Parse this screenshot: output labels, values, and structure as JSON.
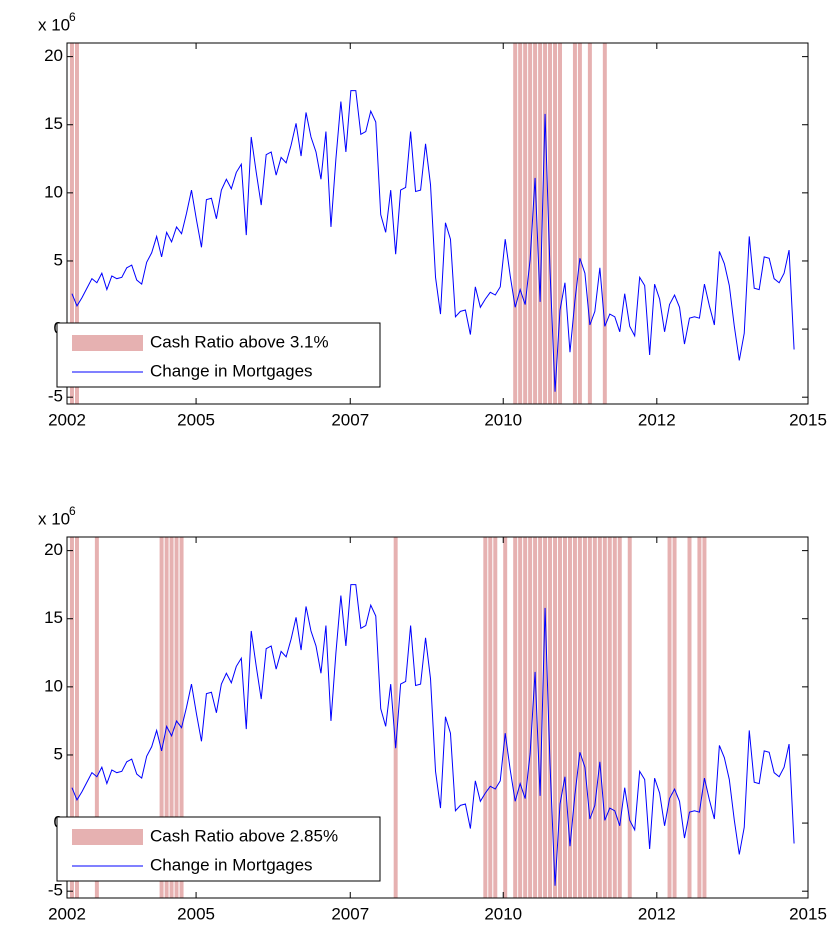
{
  "chart_data": [
    {
      "type": "line",
      "scale_label": {
        "base": "x 10",
        "exponent": "6"
      },
      "xlim": [
        2002.5,
        2014.9
      ],
      "xticks": [
        {
          "value": 2002.5,
          "label": "2002"
        },
        {
          "value": 2004.66,
          "label": "2005"
        },
        {
          "value": 2007.24,
          "label": "2007"
        },
        {
          "value": 2009.8,
          "label": "2010"
        },
        {
          "value": 2012.37,
          "label": "2012"
        },
        {
          "value": 2014.9,
          "label": "2015"
        }
      ],
      "ylim": [
        -5.5,
        21
      ],
      "yticks": [
        -5,
        0,
        5,
        10,
        15,
        20
      ],
      "legend": "lower left",
      "shaded": {
        "name": "Cash Ratio above 3.1%",
        "color": "#e6b1b1",
        "x": [
          2002.583,
          2002.667,
          2010.0,
          2010.083,
          2010.167,
          2010.25,
          2010.333,
          2010.417,
          2010.5,
          2010.583,
          2010.667,
          2010.75,
          2011.0,
          2011.083,
          2011.25,
          2011.5
        ]
      },
      "series": [
        {
          "name": "Change in Mortgages",
          "color": "#0000ff",
          "x": [
            2002.583,
            2002.667,
            2002.75,
            2002.833,
            2002.917,
            2003.0,
            2003.083,
            2003.167,
            2003.25,
            2003.333,
            2003.417,
            2003.5,
            2003.583,
            2003.667,
            2003.75,
            2003.833,
            2003.917,
            2004.0,
            2004.083,
            2004.167,
            2004.25,
            2004.333,
            2004.417,
            2004.5,
            2004.583,
            2004.667,
            2004.75,
            2004.833,
            2004.917,
            2005.0,
            2005.083,
            2005.167,
            2005.25,
            2005.333,
            2005.417,
            2005.5,
            2005.583,
            2005.667,
            2005.75,
            2005.833,
            2005.917,
            2006.0,
            2006.083,
            2006.167,
            2006.25,
            2006.333,
            2006.417,
            2006.5,
            2006.583,
            2006.667,
            2006.75,
            2006.833,
            2006.917,
            2007.0,
            2007.083,
            2007.167,
            2007.25,
            2007.333,
            2007.417,
            2007.5,
            2007.583,
            2007.667,
            2007.75,
            2007.833,
            2007.917,
            2008.0,
            2008.083,
            2008.167,
            2008.25,
            2008.333,
            2008.417,
            2008.5,
            2008.583,
            2008.667,
            2008.75,
            2008.833,
            2008.917,
            2009.0,
            2009.083,
            2009.167,
            2009.25,
            2009.333,
            2009.417,
            2009.5,
            2009.583,
            2009.667,
            2009.75,
            2009.833,
            2009.917,
            2010.0,
            2010.083,
            2010.167,
            2010.25,
            2010.333,
            2010.417,
            2010.5,
            2010.583,
            2010.667,
            2010.75,
            2010.833,
            2010.917,
            2011.0,
            2011.083,
            2011.167,
            2011.25,
            2011.333,
            2011.417,
            2011.5,
            2011.583,
            2011.667,
            2011.75,
            2011.833,
            2011.917,
            2012.0,
            2012.083,
            2012.167,
            2012.25,
            2012.333,
            2012.417,
            2012.5,
            2012.583,
            2012.667,
            2012.75,
            2012.833,
            2012.917,
            2013.0,
            2013.083,
            2013.167,
            2013.25,
            2013.333,
            2013.417,
            2013.5,
            2013.583,
            2013.667,
            2013.75,
            2013.833,
            2013.917,
            2014.0,
            2014.083,
            2014.167,
            2014.25,
            2014.333,
            2014.417,
            2014.5,
            2014.583,
            2014.667
          ],
          "values": [
            2.6,
            1.7,
            2.3,
            3.0,
            3.7,
            3.4,
            4.1,
            2.9,
            3.9,
            3.7,
            3.8,
            4.5,
            4.7,
            3.6,
            3.3,
            4.9,
            5.6,
            6.8,
            5.3,
            7.1,
            6.4,
            7.5,
            7.0,
            8.5,
            10.2,
            8.0,
            6.0,
            9.5,
            9.6,
            8.1,
            10.2,
            11.0,
            10.3,
            11.5,
            12.1,
            6.9,
            14.1,
            11.5,
            9.1,
            12.8,
            13.0,
            11.3,
            12.6,
            12.2,
            13.5,
            15.1,
            12.7,
            15.9,
            14.1,
            13.0,
            11.0,
            14.5,
            7.5,
            12.5,
            16.7,
            13.0,
            17.5,
            17.5,
            14.3,
            14.5,
            16.0,
            15.2,
            8.4,
            7.1,
            10.2,
            5.5,
            10.2,
            10.4,
            14.5,
            10.1,
            10.2,
            13.6,
            10.6,
            3.8,
            1.1,
            7.8,
            6.6,
            0.9,
            1.3,
            1.4,
            -0.4,
            3.1,
            1.6,
            2.2,
            2.7,
            2.5,
            3.1,
            6.6,
            3.9,
            1.6,
            2.9,
            1.8,
            5.1,
            11.1,
            2.0,
            15.8,
            4.3,
            -4.6,
            1.4,
            3.4,
            -1.7,
            2.1,
            5.2,
            4.1,
            0.3,
            1.3,
            4.5,
            0.2,
            1.1,
            0.9,
            -0.2,
            2.6,
            0.2,
            -0.5,
            3.8,
            3.2,
            -1.9,
            3.3,
            2.2,
            -0.2,
            1.8,
            2.5,
            1.6,
            -1.1,
            0.8,
            0.9,
            0.8,
            3.3,
            1.7,
            0.3,
            5.7,
            4.8,
            3.2,
            0.2,
            -2.3,
            -0.3,
            6.8,
            3.0,
            2.9,
            5.3,
            5.2,
            3.7,
            3.4,
            4.1,
            5.8,
            -1.5
          ]
        }
      ]
    },
    {
      "type": "line",
      "scale_label": {
        "base": "x 10",
        "exponent": "6"
      },
      "xlim": [
        2002.5,
        2014.9
      ],
      "xticks": [
        {
          "value": 2002.5,
          "label": "2002"
        },
        {
          "value": 2004.66,
          "label": "2005"
        },
        {
          "value": 2007.24,
          "label": "2007"
        },
        {
          "value": 2009.8,
          "label": "2010"
        },
        {
          "value": 2012.37,
          "label": "2012"
        },
        {
          "value": 2014.9,
          "label": "2015"
        }
      ],
      "ylim": [
        -5.5,
        21
      ],
      "yticks": [
        -5,
        0,
        5,
        10,
        15,
        20
      ],
      "legend": "lower left",
      "shaded": {
        "name": "Cash Ratio above 2.85%",
        "color": "#e6b1b1",
        "x": [
          2002.583,
          2002.667,
          2003.0,
          2004.083,
          2004.167,
          2004.25,
          2004.333,
          2004.417,
          2008.0,
          2009.5,
          2009.583,
          2009.667,
          2009.833,
          2010.0,
          2010.083,
          2010.167,
          2010.25,
          2010.333,
          2010.417,
          2010.5,
          2010.583,
          2010.667,
          2010.75,
          2010.833,
          2010.917,
          2011.0,
          2011.083,
          2011.167,
          2011.25,
          2011.333,
          2011.417,
          2011.5,
          2011.583,
          2011.667,
          2011.75,
          2011.917,
          2012.583,
          2012.667,
          2012.917,
          2013.083,
          2013.167
        ]
      },
      "series": [
        {
          "name": "Change in Mortgages",
          "color": "#0000ff",
          "x": [
            2002.583,
            2002.667,
            2002.75,
            2002.833,
            2002.917,
            2003.0,
            2003.083,
            2003.167,
            2003.25,
            2003.333,
            2003.417,
            2003.5,
            2003.583,
            2003.667,
            2003.75,
            2003.833,
            2003.917,
            2004.0,
            2004.083,
            2004.167,
            2004.25,
            2004.333,
            2004.417,
            2004.5,
            2004.583,
            2004.667,
            2004.75,
            2004.833,
            2004.917,
            2005.0,
            2005.083,
            2005.167,
            2005.25,
            2005.333,
            2005.417,
            2005.5,
            2005.583,
            2005.667,
            2005.75,
            2005.833,
            2005.917,
            2006.0,
            2006.083,
            2006.167,
            2006.25,
            2006.333,
            2006.417,
            2006.5,
            2006.583,
            2006.667,
            2006.75,
            2006.833,
            2006.917,
            2007.0,
            2007.083,
            2007.167,
            2007.25,
            2007.333,
            2007.417,
            2007.5,
            2007.583,
            2007.667,
            2007.75,
            2007.833,
            2007.917,
            2008.0,
            2008.083,
            2008.167,
            2008.25,
            2008.333,
            2008.417,
            2008.5,
            2008.583,
            2008.667,
            2008.75,
            2008.833,
            2008.917,
            2009.0,
            2009.083,
            2009.167,
            2009.25,
            2009.333,
            2009.417,
            2009.5,
            2009.583,
            2009.667,
            2009.75,
            2009.833,
            2009.917,
            2010.0,
            2010.083,
            2010.167,
            2010.25,
            2010.333,
            2010.417,
            2010.5,
            2010.583,
            2010.667,
            2010.75,
            2010.833,
            2010.917,
            2011.0,
            2011.083,
            2011.167,
            2011.25,
            2011.333,
            2011.417,
            2011.5,
            2011.583,
            2011.667,
            2011.75,
            2011.833,
            2011.917,
            2012.0,
            2012.083,
            2012.167,
            2012.25,
            2012.333,
            2012.417,
            2012.5,
            2012.583,
            2012.667,
            2012.75,
            2012.833,
            2012.917,
            2013.0,
            2013.083,
            2013.167,
            2013.25,
            2013.333,
            2013.417,
            2013.5,
            2013.583,
            2013.667,
            2013.75,
            2013.833,
            2013.917,
            2014.0,
            2014.083,
            2014.167,
            2014.25,
            2014.333,
            2014.417,
            2014.5,
            2014.583,
            2014.667
          ],
          "values": [
            2.6,
            1.7,
            2.3,
            3.0,
            3.7,
            3.4,
            4.1,
            2.9,
            3.9,
            3.7,
            3.8,
            4.5,
            4.7,
            3.6,
            3.3,
            4.9,
            5.6,
            6.8,
            5.3,
            7.1,
            6.4,
            7.5,
            7.0,
            8.5,
            10.2,
            8.0,
            6.0,
            9.5,
            9.6,
            8.1,
            10.2,
            11.0,
            10.3,
            11.5,
            12.1,
            6.9,
            14.1,
            11.5,
            9.1,
            12.8,
            13.0,
            11.3,
            12.6,
            12.2,
            13.5,
            15.1,
            12.7,
            15.9,
            14.1,
            13.0,
            11.0,
            14.5,
            7.5,
            12.5,
            16.7,
            13.0,
            17.5,
            17.5,
            14.3,
            14.5,
            16.0,
            15.2,
            8.4,
            7.1,
            10.2,
            5.5,
            10.2,
            10.4,
            14.5,
            10.1,
            10.2,
            13.6,
            10.6,
            3.8,
            1.1,
            7.8,
            6.6,
            0.9,
            1.3,
            1.4,
            -0.4,
            3.1,
            1.6,
            2.2,
            2.7,
            2.5,
            3.1,
            6.6,
            3.9,
            1.6,
            2.9,
            1.8,
            5.1,
            11.1,
            2.0,
            15.8,
            4.3,
            -4.6,
            1.4,
            3.4,
            -1.7,
            2.1,
            5.2,
            4.1,
            0.3,
            1.3,
            4.5,
            0.2,
            1.1,
            0.9,
            -0.2,
            2.6,
            0.2,
            -0.5,
            3.8,
            3.2,
            -1.9,
            3.3,
            2.2,
            -0.2,
            1.8,
            2.5,
            1.6,
            -1.1,
            0.8,
            0.9,
            0.8,
            3.3,
            1.7,
            0.3,
            5.7,
            4.8,
            3.2,
            0.2,
            -2.3,
            -0.3,
            6.8,
            3.0,
            2.9,
            5.3,
            5.2,
            3.7,
            3.4,
            4.1,
            5.8,
            -1.5
          ]
        }
      ]
    }
  ]
}
